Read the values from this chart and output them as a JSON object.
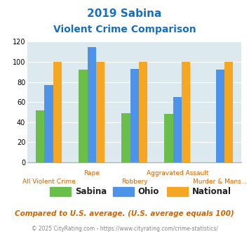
{
  "title_line1": "2019 Sabina",
  "title_line2": "Violent Crime Comparison",
  "x_top_labels": [
    "",
    "Rape",
    "",
    "Aggravated Assault",
    ""
  ],
  "x_bottom_labels": [
    "All Violent Crime",
    "",
    "Robbery",
    "",
    "Murder & Mans..."
  ],
  "sabina": [
    52,
    92,
    49,
    48,
    0
  ],
  "ohio": [
    77,
    115,
    93,
    65,
    92
  ],
  "national": [
    100,
    100,
    100,
    100,
    100
  ],
  "colors": {
    "sabina": "#6abf4b",
    "ohio": "#4d94e8",
    "national": "#f5a623"
  },
  "ylim": [
    0,
    120
  ],
  "yticks": [
    0,
    20,
    40,
    60,
    80,
    100,
    120
  ],
  "bg_color": "#dce9ef",
  "footnote": "Compared to U.S. average. (U.S. average equals 100)",
  "copyright": "© 2025 CityRating.com - https://www.cityrating.com/crime-statistics/",
  "title_color": "#1a6fbb",
  "footnote_color": "#cc6600",
  "copyright_color": "#888888",
  "xlabel_color": "#cc6600"
}
